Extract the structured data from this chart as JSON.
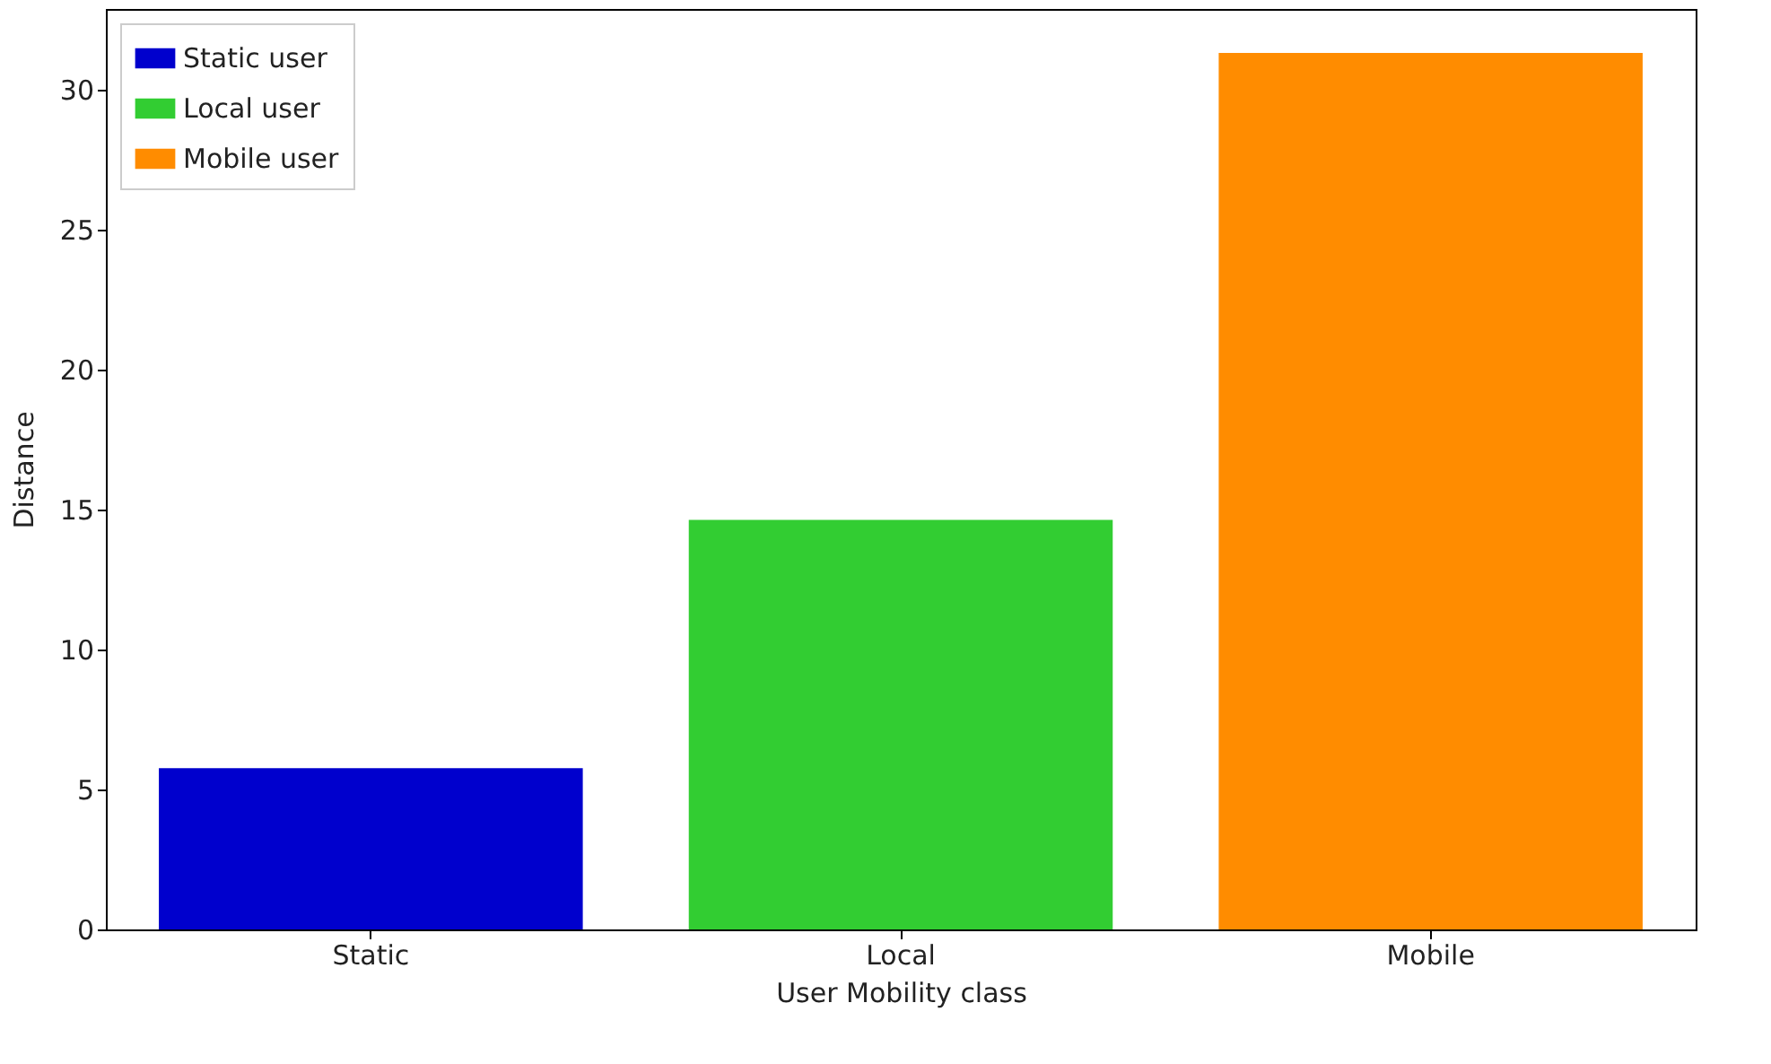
{
  "chart_data": {
    "type": "bar",
    "xlabel": "User Mobility class",
    "ylabel": "Distance",
    "categories": [
      "Static",
      "Local",
      "Mobile"
    ],
    "series": [
      {
        "name": "Static user",
        "color": "#0000cd",
        "values": [
          5.76,
          null,
          null
        ]
      },
      {
        "name": "Local user",
        "color": "#32cd32",
        "values": [
          null,
          14.64,
          null
        ]
      },
      {
        "name": "Mobile user",
        "color": "#ff8c00",
        "values": [
          null,
          null,
          31.33
        ]
      }
    ],
    "ylim": [
      0,
      32.9
    ],
    "yticks": [
      0,
      5,
      10,
      15,
      20,
      25,
      30
    ],
    "grid": false,
    "legend": "top left"
  }
}
